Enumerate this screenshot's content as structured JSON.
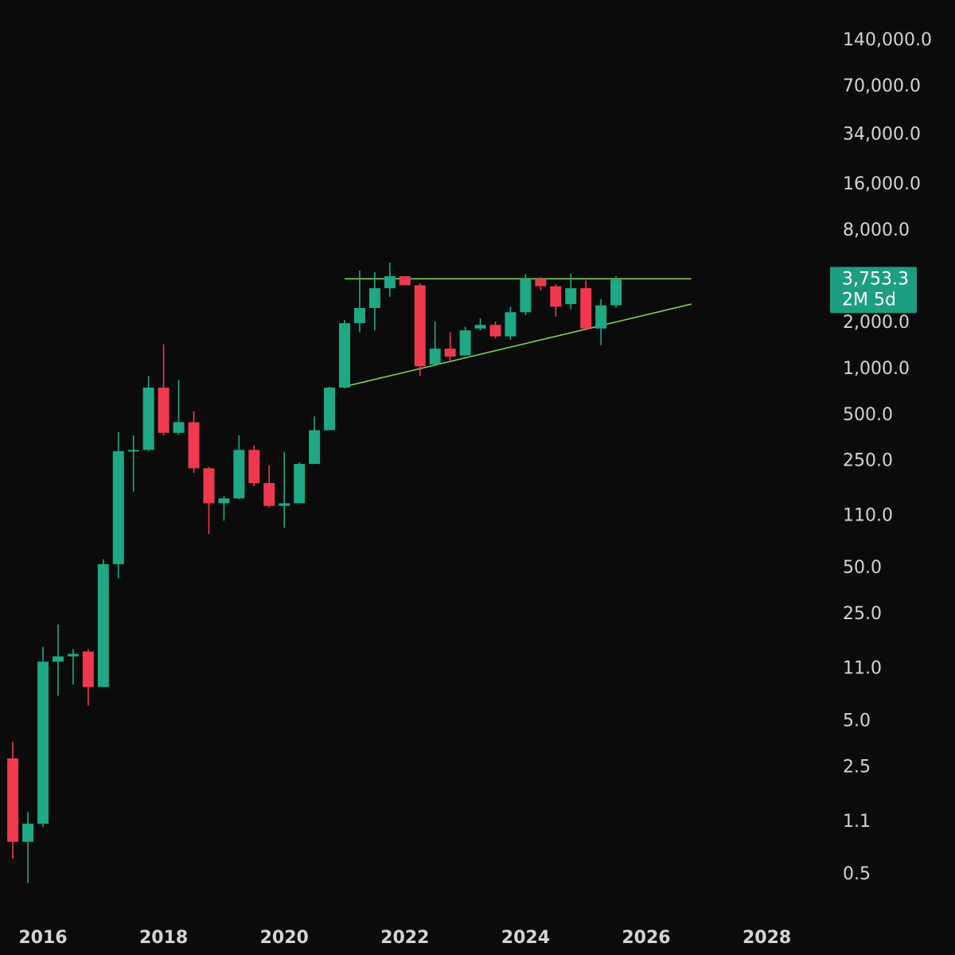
{
  "chart_data": {
    "type": "candlestick",
    "scale": "log",
    "period": "2M",
    "colors": {
      "up": "#1ea884",
      "down": "#f0394e",
      "trendline": "#7ccf5a",
      "background": "#0b0b0b",
      "badge": "#1e9e80"
    },
    "y_ticks": [
      {
        "label": "140,000.0",
        "value": 140000
      },
      {
        "label": "70,000.0",
        "value": 70000
      },
      {
        "label": "34,000.0",
        "value": 34000
      },
      {
        "label": "16,000.0",
        "value": 16000
      },
      {
        "label": "8,000.0",
        "value": 8000
      },
      {
        "label": "2,000.0",
        "value": 2000
      },
      {
        "label": "1,000.0",
        "value": 1000
      },
      {
        "label": "500.0",
        "value": 500
      },
      {
        "label": "250.0",
        "value": 250
      },
      {
        "label": "110.0",
        "value": 110
      },
      {
        "label": "50.0",
        "value": 50
      },
      {
        "label": "25.0",
        "value": 25
      },
      {
        "label": "11.0",
        "value": 11
      },
      {
        "label": "5.0",
        "value": 5
      },
      {
        "label": "2.5",
        "value": 2.5
      },
      {
        "label": "1.1",
        "value": 1.1
      },
      {
        "label": "0.5",
        "value": 0.5
      }
    ],
    "x_ticks": [
      {
        "label": "2016",
        "value": 2016.0
      },
      {
        "label": "2018",
        "value": 2018.0
      },
      {
        "label": "2020",
        "value": 2020.0
      },
      {
        "label": "2022",
        "value": 2022.0
      },
      {
        "label": "2024",
        "value": 2024.0
      },
      {
        "label": "2026",
        "value": 2026.0
      },
      {
        "label": "2028",
        "value": 2028.0
      }
    ],
    "x_range": [
      2015.25,
      2029.05
    ],
    "y_range": [
      0.32,
      200000
    ],
    "last_price": {
      "value": 3753.3,
      "label": "3,753.3",
      "countdown": "2M 5d"
    },
    "candles": [
      {
        "t": 2015.5,
        "o": 2.8,
        "h": 3.6,
        "l": 0.62,
        "c": 0.8
      },
      {
        "t": 2015.75,
        "o": 0.8,
        "h": 1.25,
        "l": 0.43,
        "c": 1.05
      },
      {
        "t": 2016.0,
        "o": 1.05,
        "h": 15.0,
        "l": 1.0,
        "c": 12.0
      },
      {
        "t": 2016.25,
        "o": 12.0,
        "h": 21.0,
        "l": 7.2,
        "c": 13.0
      },
      {
        "t": 2016.5,
        "o": 13.0,
        "h": 14.5,
        "l": 8.5,
        "c": 13.5
      },
      {
        "t": 2016.75,
        "o": 14.0,
        "h": 14.5,
        "l": 6.2,
        "c": 8.2
      },
      {
        "t": 2017.0,
        "o": 8.2,
        "h": 56.0,
        "l": 8.2,
        "c": 52.0
      },
      {
        "t": 2017.25,
        "o": 52.0,
        "h": 380.0,
        "l": 42.0,
        "c": 285.0
      },
      {
        "t": 2017.5,
        "o": 285.0,
        "h": 360.0,
        "l": 155.0,
        "c": 290.0
      },
      {
        "t": 2017.75,
        "o": 290.0,
        "h": 880.0,
        "l": 285.0,
        "c": 740.0
      },
      {
        "t": 2018.0,
        "o": 740.0,
        "h": 1420.0,
        "l": 360.0,
        "c": 375.0
      },
      {
        "t": 2018.25,
        "o": 375.0,
        "h": 830.0,
        "l": 365.0,
        "c": 440.0
      },
      {
        "t": 2018.5,
        "o": 440.0,
        "h": 520.0,
        "l": 205.0,
        "c": 220.0
      },
      {
        "t": 2018.75,
        "o": 220.0,
        "h": 225.0,
        "l": 82.0,
        "c": 130.0
      },
      {
        "t": 2019.0,
        "o": 130.0,
        "h": 145.0,
        "l": 100.0,
        "c": 140.0
      },
      {
        "t": 2019.25,
        "o": 140.0,
        "h": 360.0,
        "l": 138.0,
        "c": 290.0
      },
      {
        "t": 2019.5,
        "o": 290.0,
        "h": 310.0,
        "l": 168.0,
        "c": 176.0
      },
      {
        "t": 2019.75,
        "o": 176.0,
        "h": 230.0,
        "l": 122.0,
        "c": 125.0
      },
      {
        "t": 2020.0,
        "o": 125.0,
        "h": 280.0,
        "l": 90.0,
        "c": 130.0
      },
      {
        "t": 2020.25,
        "o": 130.0,
        "h": 240.0,
        "l": 130.0,
        "c": 235.0
      },
      {
        "t": 2020.5,
        "o": 235.0,
        "h": 480.0,
        "l": 235.0,
        "c": 390.0
      },
      {
        "t": 2020.75,
        "o": 390.0,
        "h": 750.0,
        "l": 390.0,
        "c": 740.0
      },
      {
        "t": 2021.0,
        "o": 740.0,
        "h": 2050.0,
        "l": 730.0,
        "c": 1950.0
      },
      {
        "t": 2021.25,
        "o": 1950.0,
        "h": 4300.0,
        "l": 1700.0,
        "c": 2450.0
      },
      {
        "t": 2021.5,
        "o": 2450.0,
        "h": 4200.0,
        "l": 1750.0,
        "c": 3300.0
      },
      {
        "t": 2021.75,
        "o": 3300.0,
        "h": 4850.0,
        "l": 2900.0,
        "c": 3950.0
      },
      {
        "t": 2022.0,
        "o": 3950.0,
        "h": 3950.0,
        "l": 3450.0,
        "c": 3450.0
      },
      {
        "t": 2022.25,
        "o": 3450.0,
        "h": 3550.0,
        "l": 880.0,
        "c": 1020.0
      },
      {
        "t": 2022.5,
        "o": 1050.0,
        "h": 2000.0,
        "l": 1020.0,
        "c": 1330.0
      },
      {
        "t": 2022.75,
        "o": 1330.0,
        "h": 1700.0,
        "l": 1100.0,
        "c": 1180.0
      },
      {
        "t": 2023.0,
        "o": 1200.0,
        "h": 1850.0,
        "l": 1200.0,
        "c": 1750.0
      },
      {
        "t": 2023.25,
        "o": 1800.0,
        "h": 2100.0,
        "l": 1750.0,
        "c": 1900.0
      },
      {
        "t": 2023.5,
        "o": 1900.0,
        "h": 2000.0,
        "l": 1550.0,
        "c": 1600.0
      },
      {
        "t": 2023.75,
        "o": 1600.0,
        "h": 2500.0,
        "l": 1520.0,
        "c": 2300.0
      },
      {
        "t": 2024.0,
        "o": 2300.0,
        "h": 4100.0,
        "l": 2200.0,
        "c": 3800.0
      },
      {
        "t": 2024.25,
        "o": 3800.0,
        "h": 3900.0,
        "l": 3200.0,
        "c": 3400.0
      },
      {
        "t": 2024.5,
        "o": 3400.0,
        "h": 3500.0,
        "l": 2150.0,
        "c": 2500.0
      },
      {
        "t": 2024.75,
        "o": 2600.0,
        "h": 4100.0,
        "l": 2400.0,
        "c": 3300.0
      },
      {
        "t": 2025.0,
        "o": 3300.0,
        "h": 3700.0,
        "l": 1750.0,
        "c": 1800.0
      },
      {
        "t": 2025.25,
        "o": 1800.0,
        "h": 2800.0,
        "l": 1400.0,
        "c": 2550.0
      },
      {
        "t": 2025.5,
        "o": 2550.0,
        "h": 3950.0,
        "l": 2450.0,
        "c": 3753.3
      }
    ],
    "trendlines": [
      {
        "name": "resistance",
        "from": {
          "t": 2021.0,
          "v": 3800
        },
        "to": {
          "t": 2026.75,
          "v": 3800
        }
      },
      {
        "name": "support",
        "from": {
          "t": 2021.05,
          "v": 760
        },
        "to": {
          "t": 2026.75,
          "v": 2600
        }
      }
    ]
  }
}
